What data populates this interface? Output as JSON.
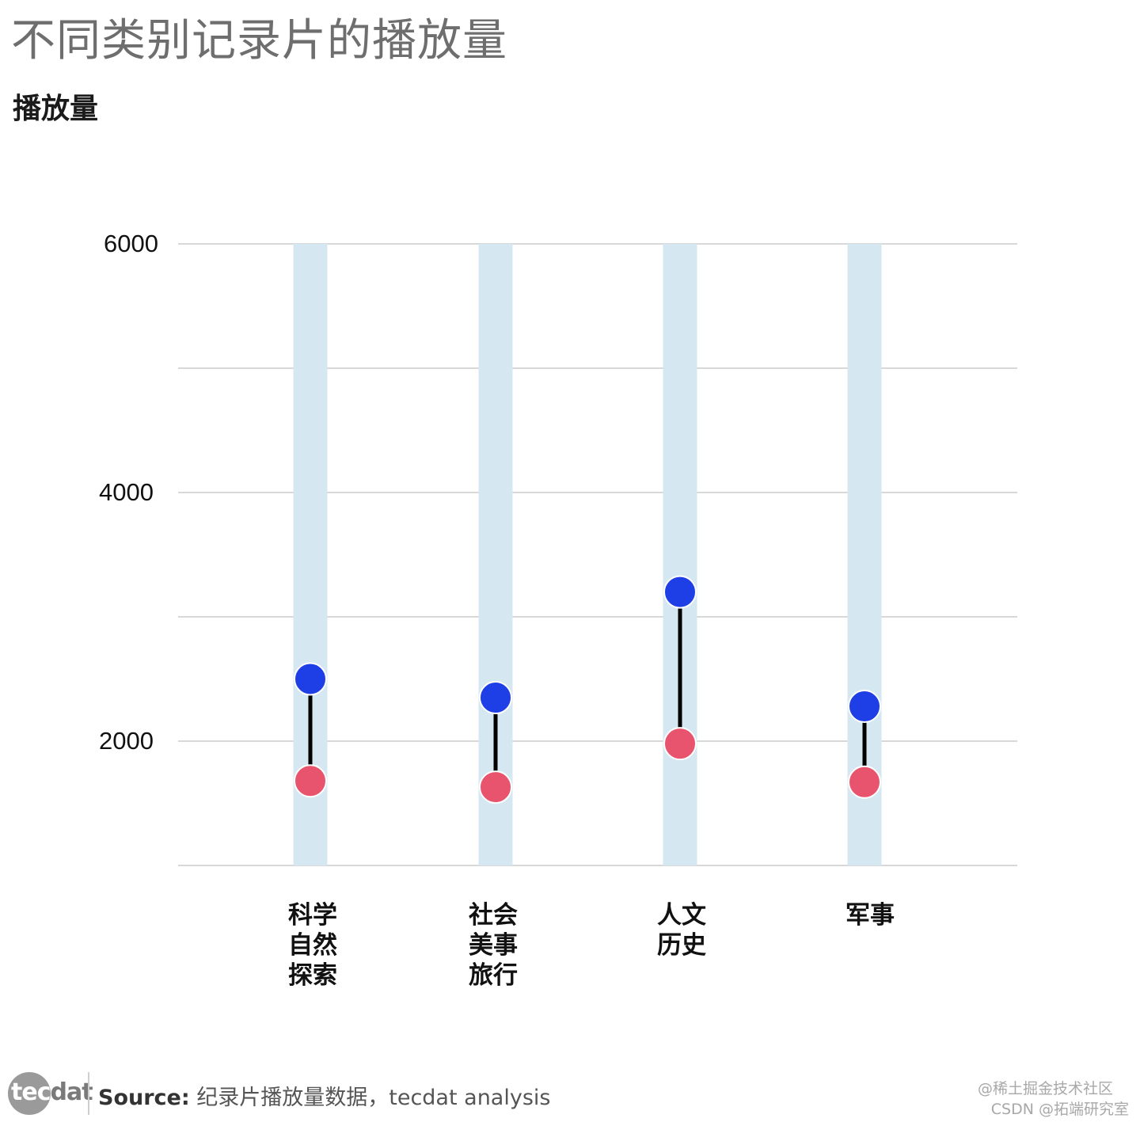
{
  "header": {
    "title": "不同类别记录片的播放量",
    "subtitle": "播放量"
  },
  "chart_data": {
    "type": "dumbbell",
    "categories": [
      "科学\n自然\n探索",
      "社会\n美事\n旅行",
      "人文\n历史",
      "军事"
    ],
    "series": [
      {
        "values": [
          2500,
          2350,
          3200,
          2280
        ]
      },
      {
        "values": [
          1680,
          1630,
          1980,
          1670
        ]
      }
    ],
    "yticks": [
      6000,
      4000,
      2000
    ],
    "ylim": [
      1000,
      6000
    ],
    "grid": true,
    "colors": {
      "high": "#1f3fe6",
      "low": "#e8546e",
      "band": "#d5e8f1",
      "grid": "#d8d8d8",
      "connector": "#000000"
    }
  },
  "footer": {
    "logo_highlight": "tec",
    "logo_rest": "dat",
    "source_label": "Source:",
    "source_text": "纪录片播放量数据，tecdat analysis",
    "watermark_1": "@稀土掘金技术社区",
    "watermark_2": "CSDN @拓端研究室"
  }
}
